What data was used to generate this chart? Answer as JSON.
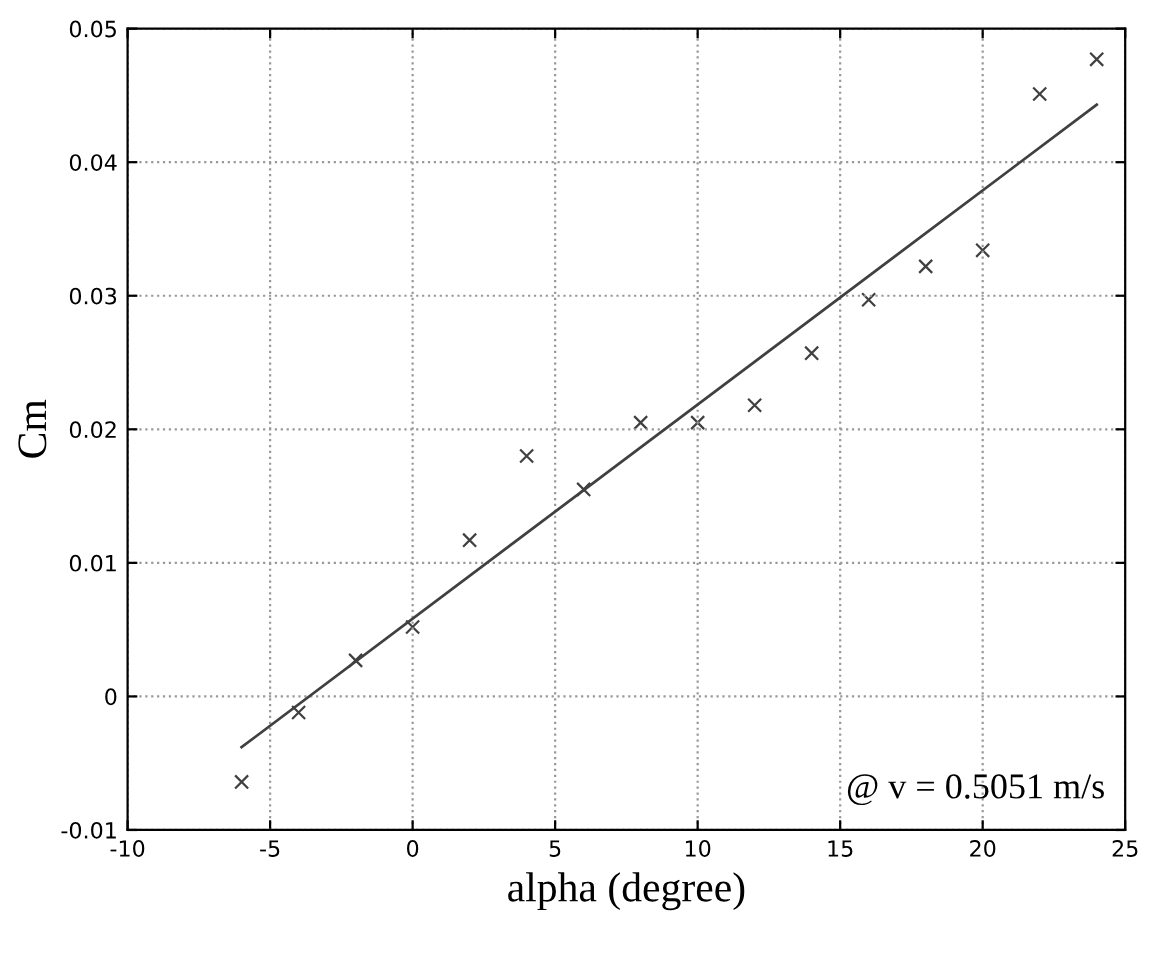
{
  "chart_data": {
    "type": "scatter",
    "xlabel": "alpha (degree)",
    "ylabel": "Cm",
    "series": [
      {
        "color": "#404040",
        "marker": "cross",
        "x": [
          -6,
          -4,
          -2,
          0,
          2,
          4,
          6,
          8,
          10,
          12,
          14,
          16,
          18,
          20,
          22,
          24
        ],
        "values": [
          -0.0064,
          -0.0012,
          0.0027,
          0.0052,
          0.0117,
          0.018,
          0.0155,
          0.0205,
          0.0205,
          0.0218,
          0.0257,
          0.0297,
          0.0322,
          0.0334,
          0.0451,
          0.0477
        ]
      },
      {
        "type": "line",
        "color": "#404040",
        "marker": "none",
        "line_style": "solid",
        "x": [
          -6,
          24
        ],
        "values": [
          -0.0038,
          0.0443
        ]
      }
    ],
    "xlim": [
      -10,
      25
    ],
    "xticks": [
      -10,
      -5,
      0,
      5,
      10,
      15,
      20,
      25
    ],
    "ylim": [
      -0.01,
      0.05
    ],
    "yticks": [
      -0.01,
      0,
      0.01,
      0.02,
      0.03,
      0.04,
      0.05
    ],
    "grid": true,
    "annotations": [
      "@ v = 0.5051 m/s"
    ]
  }
}
